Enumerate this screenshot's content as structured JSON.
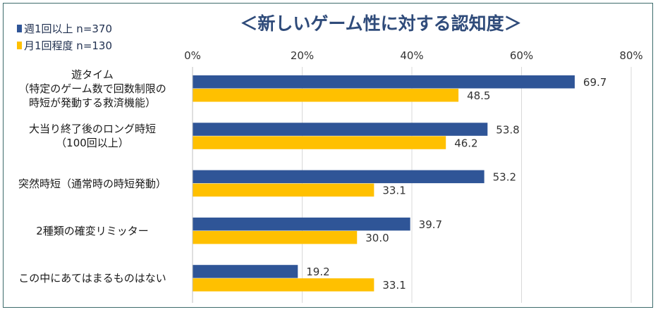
{
  "chart_data": {
    "type": "bar",
    "orientation": "horizontal",
    "title": "＜新しいゲーム性に対する認知度＞",
    "categories": [
      [
        "遊タイム",
        "（特定のゲーム数で回数制限の",
        "時短が発動する救済機能）"
      ],
      [
        "大当り終了後のロング時短",
        "（100回以上）"
      ],
      [
        "突然時短（通常時の時短発動）"
      ],
      [
        "2種類の確変リミッター"
      ],
      [
        "この中にあてはまるものはない"
      ]
    ],
    "series": [
      {
        "name": "週1回以上  n=370",
        "color": "#2f5597",
        "values": [
          69.7,
          53.8,
          53.2,
          39.7,
          19.2
        ],
        "labels": [
          "69.7",
          "53.8",
          "53.2",
          "39.7",
          "19.2"
        ]
      },
      {
        "name": "月1回程度  n=130",
        "color": "#ffc000",
        "values": [
          48.5,
          46.2,
          33.1,
          30.0,
          33.1
        ],
        "labels": [
          "48.5",
          "46.2",
          "33.1",
          "30.0",
          "33.1"
        ]
      }
    ],
    "xlim": [
      0,
      80
    ],
    "xticks": [
      "0%",
      "20%",
      "40%",
      "60%",
      "80%"
    ],
    "xtick_values": [
      0,
      20,
      40,
      60,
      80
    ],
    "grid": true,
    "legend_position": "top-left"
  }
}
